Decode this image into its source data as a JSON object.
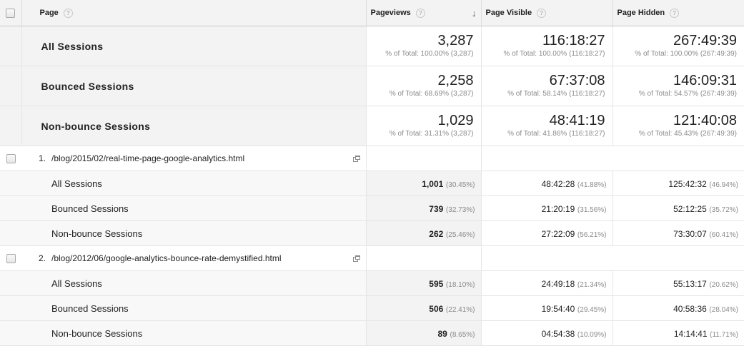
{
  "header": {
    "page": "Page",
    "pageviews": "Pageviews",
    "page_visible": "Page Visible",
    "page_hidden": "Page Hidden",
    "help": "?",
    "sort_icon": "sort-descending-icon"
  },
  "summary": [
    {
      "segment": "All Sessions",
      "pageviews": "3,287",
      "pageviews_pct": "% of Total: 100.00% (3,287)",
      "visible": "116:18:27",
      "visible_pct": "% of Total: 100.00% (116:18:27)",
      "hidden": "267:49:39",
      "hidden_pct": "% of Total: 100.00% (267:49:39)"
    },
    {
      "segment": "Bounced Sessions",
      "pageviews": "2,258",
      "pageviews_pct": "% of Total: 68.69% (3,287)",
      "visible": "67:37:08",
      "visible_pct": "% of Total: 58.14% (116:18:27)",
      "hidden": "146:09:31",
      "hidden_pct": "% of Total: 54.57% (267:49:39)"
    },
    {
      "segment": "Non-bounce Sessions",
      "pageviews": "1,029",
      "pageviews_pct": "% of Total: 31.31% (3,287)",
      "visible": "48:41:19",
      "visible_pct": "% of Total: 41.86% (116:18:27)",
      "hidden": "121:40:08",
      "hidden_pct": "% of Total: 45.43% (267:49:39)"
    }
  ],
  "pages": [
    {
      "index": "1.",
      "url": "/blog/2015/02/real-time-page-google-analytics.html",
      "rows": [
        {
          "segment": "All Sessions",
          "pageviews": "1,001",
          "pageviews_pct": "(30.45%)",
          "visible": "48:42:28",
          "visible_pct": "(41.88%)",
          "hidden": "125:42:32",
          "hidden_pct": "(46.94%)"
        },
        {
          "segment": "Bounced Sessions",
          "pageviews": "739",
          "pageviews_pct": "(32.73%)",
          "visible": "21:20:19",
          "visible_pct": "(31.56%)",
          "hidden": "52:12:25",
          "hidden_pct": "(35.72%)"
        },
        {
          "segment": "Non-bounce Sessions",
          "pageviews": "262",
          "pageviews_pct": "(25.46%)",
          "visible": "27:22:09",
          "visible_pct": "(56.21%)",
          "hidden": "73:30:07",
          "hidden_pct": "(60.41%)"
        }
      ]
    },
    {
      "index": "2.",
      "url": "/blog/2012/06/google-analytics-bounce-rate-demystified.html",
      "rows": [
        {
          "segment": "All Sessions",
          "pageviews": "595",
          "pageviews_pct": "(18.10%)",
          "visible": "24:49:18",
          "visible_pct": "(21.34%)",
          "hidden": "55:13:17",
          "hidden_pct": "(20.62%)"
        },
        {
          "segment": "Bounced Sessions",
          "pageviews": "506",
          "pageviews_pct": "(22.41%)",
          "visible": "19:54:40",
          "visible_pct": "(29.45%)",
          "hidden": "40:58:36",
          "hidden_pct": "(28.04%)"
        },
        {
          "segment": "Non-bounce Sessions",
          "pageviews": "89",
          "pageviews_pct": "(8.65%)",
          "visible": "04:54:38",
          "visible_pct": "(10.09%)",
          "hidden": "14:14:41",
          "hidden_pct": "(11.71%)"
        }
      ]
    }
  ]
}
